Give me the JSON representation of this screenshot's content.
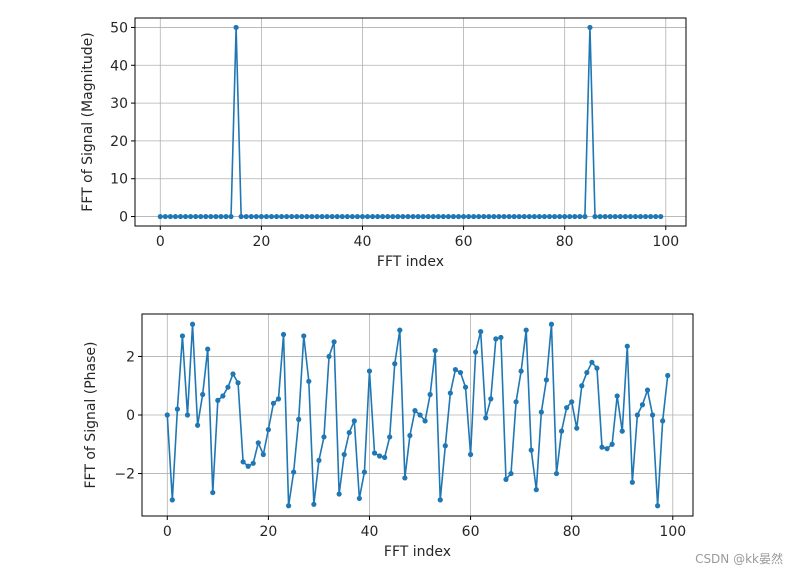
{
  "chart_data": [
    {
      "type": "line",
      "title": "",
      "xlabel": "FFT index",
      "ylabel": "FFT of Signal (Magnitude)",
      "xlim": [
        -5,
        104
      ],
      "ylim": [
        -2.5,
        52.5
      ],
      "xticks": [
        0,
        20,
        40,
        60,
        80,
        100
      ],
      "yticks": [
        0,
        10,
        20,
        30,
        40,
        50
      ],
      "grid": true,
      "marker": "o",
      "color": "#1f77b4",
      "x_range": [
        0,
        99
      ],
      "values": [
        0,
        0,
        0,
        0,
        0,
        0,
        0,
        0,
        0,
        0,
        0,
        0,
        0,
        0,
        0,
        50,
        0,
        0,
        0,
        0,
        0,
        0,
        0,
        0,
        0,
        0,
        0,
        0,
        0,
        0,
        0,
        0,
        0,
        0,
        0,
        0,
        0,
        0,
        0,
        0,
        0,
        0,
        0,
        0,
        0,
        0,
        0,
        0,
        0,
        0,
        0,
        0,
        0,
        0,
        0,
        0,
        0,
        0,
        0,
        0,
        0,
        0,
        0,
        0,
        0,
        0,
        0,
        0,
        0,
        0,
        0,
        0,
        0,
        0,
        0,
        0,
        0,
        0,
        0,
        0,
        0,
        0,
        0,
        0,
        0,
        50,
        0,
        0,
        0,
        0,
        0,
        0,
        0,
        0,
        0,
        0,
        0,
        0,
        0,
        0
      ]
    },
    {
      "type": "line",
      "title": "",
      "xlabel": "FFT index",
      "ylabel": "FFT of Signal (Phase)",
      "xlim": [
        -5,
        104
      ],
      "ylim": [
        -3.45,
        3.45
      ],
      "xticks": [
        0,
        20,
        40,
        60,
        80,
        100
      ],
      "yticks": [
        -2,
        0,
        2
      ],
      "grid": true,
      "marker": "o",
      "color": "#1f77b4",
      "x_range": [
        0,
        99
      ],
      "values": [
        0.0,
        -2.9,
        0.2,
        2.7,
        0.0,
        3.1,
        -0.35,
        0.7,
        2.25,
        -2.65,
        0.5,
        0.65,
        0.95,
        1.4,
        1.1,
        -1.6,
        -1.75,
        -1.65,
        -0.95,
        -1.35,
        -0.5,
        0.4,
        0.55,
        2.75,
        -3.1,
        -1.95,
        -0.15,
        2.7,
        1.15,
        -3.05,
        -1.55,
        -0.75,
        2.0,
        2.5,
        -2.7,
        -1.35,
        -0.6,
        -0.2,
        -2.85,
        -1.95,
        1.5,
        -1.3,
        -1.4,
        -1.45,
        -0.75,
        1.75,
        2.9,
        -2.15,
        -0.7,
        0.15,
        0.0,
        -0.2,
        0.7,
        2.2,
        -2.9,
        -1.05,
        0.75,
        1.55,
        1.45,
        0.95,
        -1.35,
        2.15,
        2.85,
        -0.1,
        0.55,
        2.6,
        2.65,
        -2.2,
        -2.0,
        0.45,
        1.5,
        2.9,
        -1.2,
        -2.55,
        0.1,
        1.2,
        3.1,
        -2.0,
        -0.55,
        0.25,
        0.45,
        -0.45,
        1.0,
        1.45,
        1.8,
        1.6,
        -1.1,
        -1.15,
        -1.0,
        0.65,
        -0.55,
        2.35,
        -2.3,
        0.0,
        0.35,
        0.85,
        0.0,
        -3.1,
        -0.2,
        1.35
      ]
    }
  ],
  "watermark": "CSDN @kk晏然"
}
